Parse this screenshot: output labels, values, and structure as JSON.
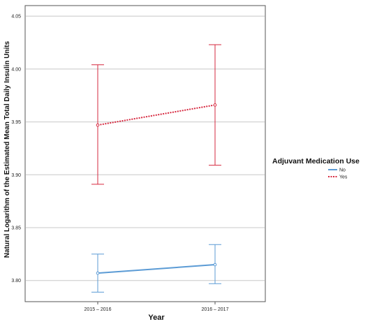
{
  "chart_data": {
    "type": "line",
    "title": "",
    "xlabel": "Year",
    "ylabel": "Natural Logarithm of the Estimated Mean Total Daily Insulin Units",
    "categories": [
      "2015 – 2016",
      "2016 – 2017"
    ],
    "ylim": [
      3.78,
      4.06
    ],
    "yticks": [
      3.8,
      3.85,
      3.9,
      3.95,
      4.0,
      4.05
    ],
    "ytick_labels": [
      "3.80",
      "3.85",
      "3.90",
      "3.95",
      "4.00",
      "4.05"
    ],
    "grid": "horizontal",
    "legend": {
      "title": "Adjuvant Medication Use",
      "placement": "right"
    },
    "series": [
      {
        "name": "No",
        "color": "#5b9bd5",
        "dash": "solid",
        "values": [
          3.807,
          3.815
        ],
        "error_low": [
          3.789,
          3.797
        ],
        "error_high": [
          3.825,
          3.834
        ]
      },
      {
        "name": "Yes",
        "color": "#d6283f",
        "dash": "dotted",
        "values": [
          3.947,
          3.966
        ],
        "error_low": [
          3.891,
          3.909
        ],
        "error_high": [
          4.004,
          4.023
        ]
      }
    ]
  }
}
